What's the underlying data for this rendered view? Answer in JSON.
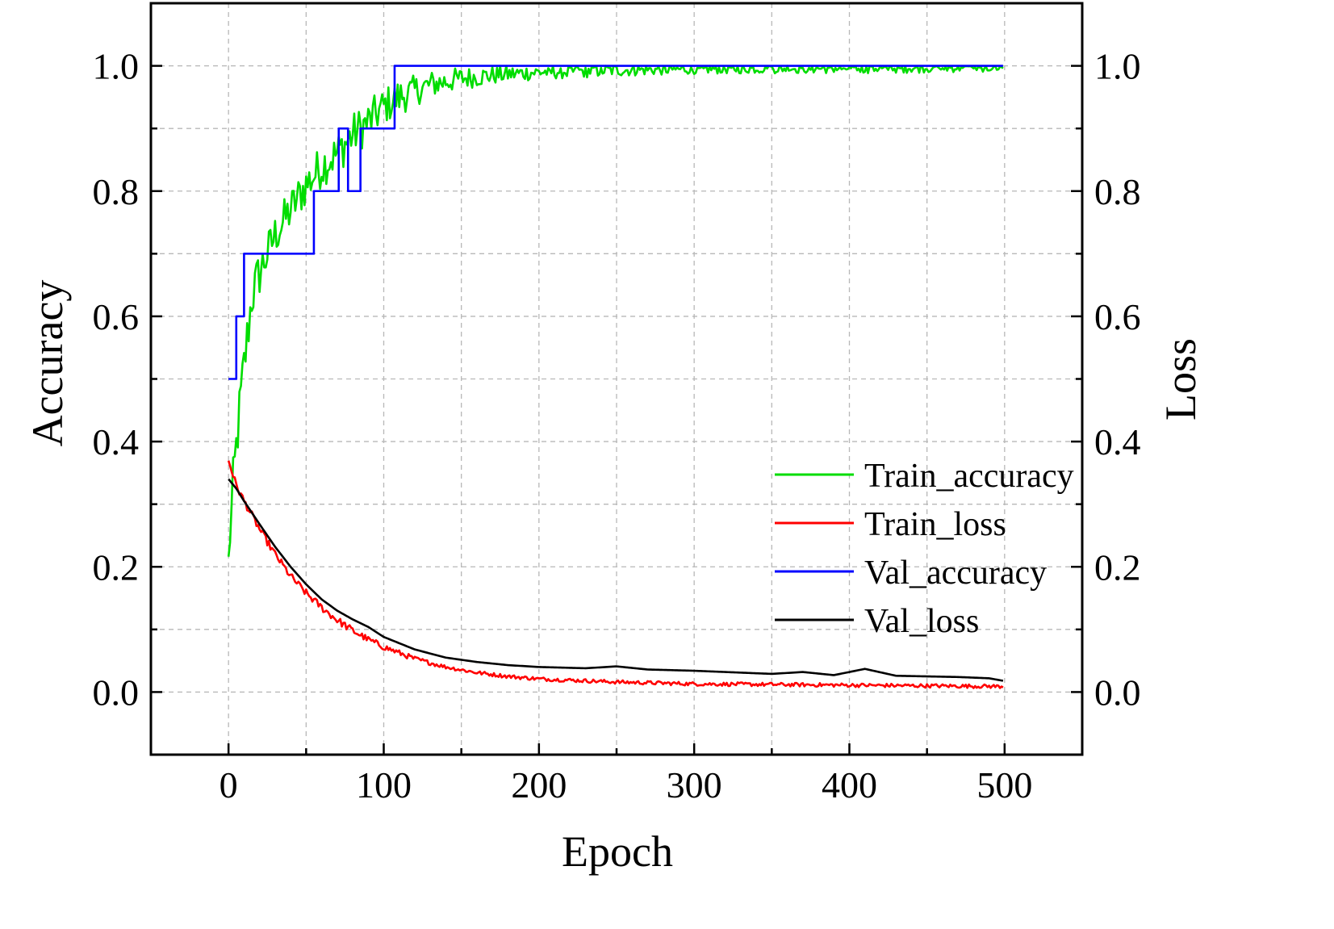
{
  "chart_data": {
    "type": "line",
    "title": "",
    "xlabel": "Epoch",
    "ylabel": "Accuracy",
    "y2label": "Loss",
    "xlim": [
      -50,
      550
    ],
    "ylim": [
      -0.1,
      1.1
    ],
    "y2lim": [
      -0.1,
      1.1
    ],
    "x_ticks": [
      "0",
      "100",
      "200",
      "300",
      "400",
      "500"
    ],
    "y_ticks": [
      "0.0",
      "0.2",
      "0.4",
      "0.6",
      "0.8",
      "1.0"
    ],
    "y2_ticks": [
      "0.0",
      "0.2",
      "0.4",
      "0.6",
      "0.8",
      "1.0"
    ],
    "grid": true,
    "legend_position": "center-right",
    "series": [
      {
        "name": "Train_accuracy",
        "color": "#00dd00",
        "axis": "left",
        "style": "noisy",
        "x": [
          0,
          3,
          6,
          10,
          15,
          20,
          25,
          30,
          40,
          50,
          60,
          70,
          80,
          90,
          100,
          110,
          120,
          130,
          140,
          150,
          170,
          200,
          250,
          300,
          350,
          400,
          450,
          499
        ],
        "y": [
          0.21,
          0.33,
          0.42,
          0.52,
          0.63,
          0.67,
          0.7,
          0.73,
          0.77,
          0.81,
          0.84,
          0.86,
          0.89,
          0.91,
          0.935,
          0.95,
          0.96,
          0.97,
          0.975,
          0.98,
          0.985,
          0.99,
          0.993,
          0.995,
          0.996,
          0.996,
          0.997,
          0.997
        ],
        "noise": [
          0.02,
          0.045,
          0.045,
          0.045,
          0.04,
          0.04,
          0.035,
          0.035,
          0.035,
          0.035,
          0.035,
          0.035,
          0.035,
          0.035,
          0.03,
          0.03,
          0.025,
          0.022,
          0.02,
          0.018,
          0.015,
          0.012,
          0.01,
          0.008,
          0.008,
          0.008,
          0.008,
          0.006
        ]
      },
      {
        "name": "Train_loss",
        "color": "#ff0000",
        "axis": "right",
        "style": "noisy",
        "x": [
          0,
          5,
          10,
          20,
          30,
          40,
          50,
          60,
          70,
          80,
          90,
          100,
          120,
          140,
          160,
          180,
          200,
          250,
          300,
          350,
          400,
          450,
          499
        ],
        "y": [
          0.37,
          0.33,
          0.305,
          0.26,
          0.22,
          0.185,
          0.158,
          0.135,
          0.115,
          0.098,
          0.084,
          0.072,
          0.053,
          0.04,
          0.031,
          0.025,
          0.021,
          0.016,
          0.013,
          0.012,
          0.011,
          0.01,
          0.009
        ],
        "noise": [
          0.004,
          0.006,
          0.006,
          0.006,
          0.006,
          0.006,
          0.006,
          0.006,
          0.006,
          0.006,
          0.005,
          0.005,
          0.004,
          0.003,
          0.003,
          0.003,
          0.003,
          0.003,
          0.003,
          0.003,
          0.003,
          0.003,
          0.003
        ]
      },
      {
        "name": "Val_accuracy",
        "color": "#0000ff",
        "axis": "left",
        "style": "step",
        "x": [
          0,
          5,
          10,
          55,
          71,
          77,
          82,
          85,
          106,
          107,
          499
        ],
        "y": [
          0.5,
          0.6,
          0.7,
          0.8,
          0.9,
          0.8,
          0.8,
          0.9,
          0.9,
          1.0,
          1.0
        ]
      },
      {
        "name": "Val_loss",
        "color": "#000000",
        "axis": "right",
        "style": "smooth",
        "x": [
          0,
          5,
          10,
          20,
          30,
          40,
          50,
          60,
          70,
          80,
          90,
          100,
          120,
          140,
          160,
          180,
          200,
          230,
          250,
          270,
          300,
          330,
          350,
          370,
          390,
          410,
          430,
          450,
          470,
          490,
          499
        ],
        "y": [
          0.34,
          0.325,
          0.305,
          0.268,
          0.232,
          0.2,
          0.172,
          0.148,
          0.13,
          0.116,
          0.104,
          0.088,
          0.068,
          0.055,
          0.048,
          0.043,
          0.04,
          0.038,
          0.041,
          0.036,
          0.034,
          0.031,
          0.029,
          0.032,
          0.027,
          0.037,
          0.026,
          0.025,
          0.024,
          0.022,
          0.018
        ]
      }
    ]
  }
}
